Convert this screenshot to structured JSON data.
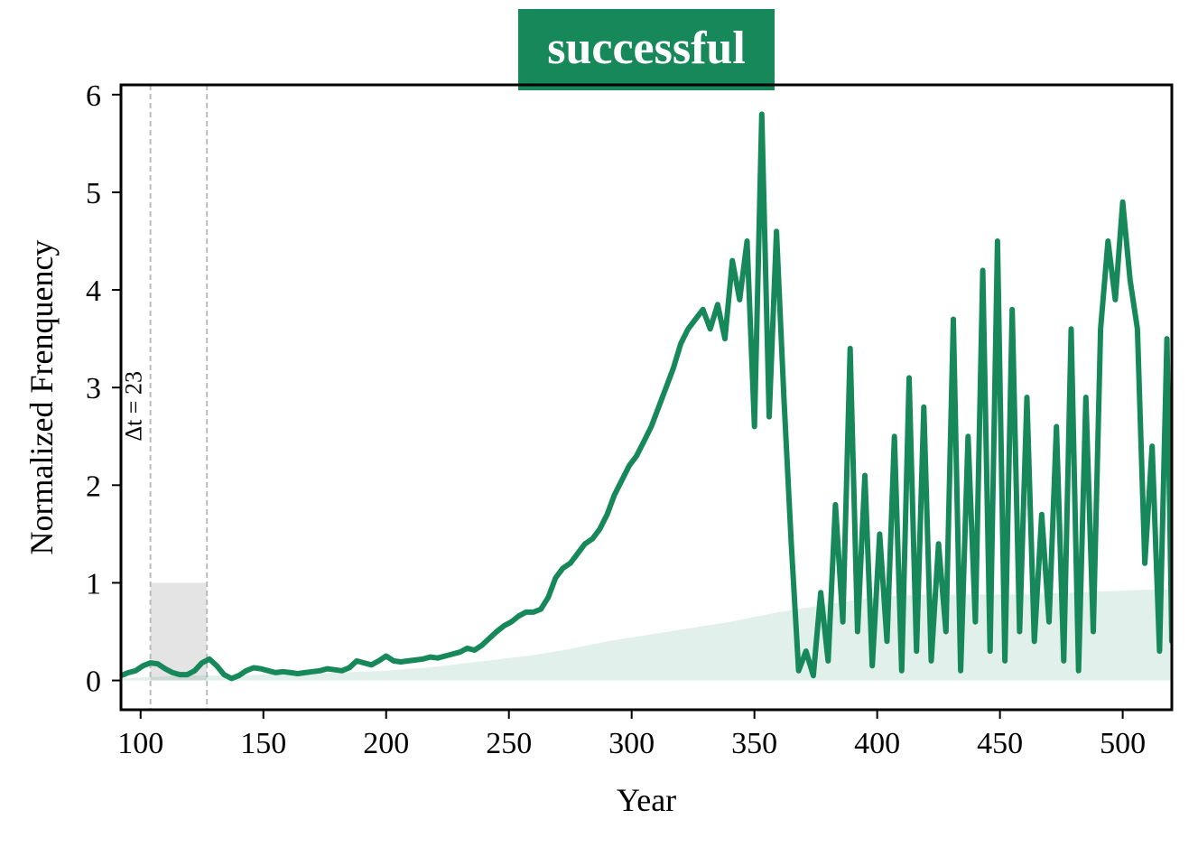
{
  "chart_data": {
    "type": "line",
    "title": "successful",
    "xlabel": "Year",
    "ylabel": "Normalized Frenquency",
    "xlim": [
      92,
      520
    ],
    "ylim": [
      -0.3,
      6.1
    ],
    "xticks": [
      100,
      150,
      200,
      250,
      300,
      350,
      400,
      450,
      500
    ],
    "yticks": [
      0,
      1,
      2,
      3,
      4,
      5,
      6
    ],
    "grid": false,
    "colors": {
      "line": "#16885a",
      "band": "#16885a",
      "highlight": "#d9d9d9",
      "title_bg": "#16885a"
    },
    "highlight_window": {
      "x_start": 104,
      "x_end": 127,
      "height": 1.0
    },
    "annotation": "Δt = 23",
    "series": [
      {
        "x": [
          92,
          95,
          98,
          101,
          104,
          107,
          110,
          113,
          116,
          119,
          122,
          125,
          128,
          131,
          134,
          137,
          140,
          143,
          146,
          149,
          152,
          155,
          158,
          161,
          164,
          167,
          170,
          173,
          176,
          179,
          182,
          185,
          188,
          191,
          194,
          197,
          200,
          203,
          206,
          209,
          212,
          215,
          218,
          221,
          224,
          227,
          230,
          233,
          236,
          239,
          242,
          245,
          248,
          251,
          254,
          257,
          260,
          263,
          266,
          269,
          272,
          275,
          278,
          281,
          284,
          287,
          290,
          293,
          296,
          299,
          302,
          305,
          308,
          311,
          314,
          317,
          320,
          323,
          326,
          329,
          332,
          335,
          338,
          341,
          344,
          347,
          350,
          353,
          356,
          359,
          362,
          365,
          368,
          371,
          374,
          377,
          380,
          383,
          386,
          389,
          392,
          395,
          398,
          401,
          404,
          407,
          410,
          413,
          416,
          419,
          422,
          425,
          428,
          431,
          434,
          437,
          440,
          443,
          446,
          449,
          452,
          455,
          458,
          461,
          464,
          467,
          470,
          473,
          476,
          479,
          482,
          485,
          488,
          491,
          494,
          497,
          500,
          503,
          506,
          509,
          512,
          515,
          518,
          520
        ],
        "y": [
          0.05,
          0.08,
          0.1,
          0.15,
          0.18,
          0.17,
          0.12,
          0.08,
          0.06,
          0.06,
          0.1,
          0.18,
          0.22,
          0.15,
          0.06,
          0.02,
          0.05,
          0.1,
          0.13,
          0.12,
          0.1,
          0.08,
          0.09,
          0.08,
          0.07,
          0.08,
          0.09,
          0.1,
          0.12,
          0.11,
          0.1,
          0.13,
          0.2,
          0.18,
          0.16,
          0.2,
          0.25,
          0.2,
          0.19,
          0.2,
          0.21,
          0.22,
          0.24,
          0.23,
          0.25,
          0.27,
          0.29,
          0.33,
          0.31,
          0.36,
          0.43,
          0.5,
          0.56,
          0.6,
          0.66,
          0.7,
          0.7,
          0.73,
          0.85,
          1.05,
          1.15,
          1.2,
          1.3,
          1.4,
          1.45,
          1.55,
          1.7,
          1.9,
          2.05,
          2.2,
          2.3,
          2.45,
          2.6,
          2.8,
          3.0,
          3.2,
          3.45,
          3.6,
          3.7,
          3.8,
          3.6,
          3.85,
          3.5,
          4.3,
          3.9,
          4.5,
          2.6,
          5.8,
          2.7,
          4.6,
          2.9,
          1.4,
          0.1,
          0.3,
          0.05,
          0.9,
          0.2,
          1.8,
          0.6,
          3.4,
          0.5,
          2.1,
          0.15,
          1.5,
          0.4,
          2.5,
          0.1,
          3.1,
          0.3,
          2.8,
          0.2,
          1.4,
          0.5,
          3.7,
          0.1,
          2.5,
          0.6,
          4.2,
          0.3,
          4.5,
          0.2,
          3.8,
          0.5,
          2.9,
          0.4,
          1.7,
          0.6,
          2.6,
          0.2,
          3.6,
          0.1,
          2.9,
          0.5,
          3.6,
          4.5,
          3.9,
          4.9,
          4.1,
          3.6,
          1.2,
          2.4,
          0.3,
          3.5,
          0.4
        ]
      }
    ],
    "band_series": {
      "x": [
        92,
        100,
        110,
        120,
        130,
        140,
        150,
        160,
        170,
        180,
        190,
        200,
        210,
        220,
        230,
        240,
        250,
        260,
        270,
        280,
        290,
        300,
        310,
        320,
        330,
        340,
        350,
        360,
        370,
        380,
        390,
        400,
        410,
        420,
        430,
        440,
        450,
        460,
        470,
        480,
        490,
        500,
        510,
        520
      ],
      "y": [
        0.02,
        0.03,
        0.04,
        0.05,
        0.05,
        0.05,
        0.06,
        0.07,
        0.07,
        0.08,
        0.09,
        0.1,
        0.12,
        0.14,
        0.17,
        0.2,
        0.23,
        0.26,
        0.3,
        0.35,
        0.4,
        0.44,
        0.48,
        0.52,
        0.56,
        0.6,
        0.65,
        0.7,
        0.74,
        0.78,
        0.82,
        0.85,
        0.87,
        0.88,
        0.88,
        0.88,
        0.88,
        0.88,
        0.89,
        0.9,
        0.91,
        0.92,
        0.93,
        0.93
      ]
    }
  }
}
